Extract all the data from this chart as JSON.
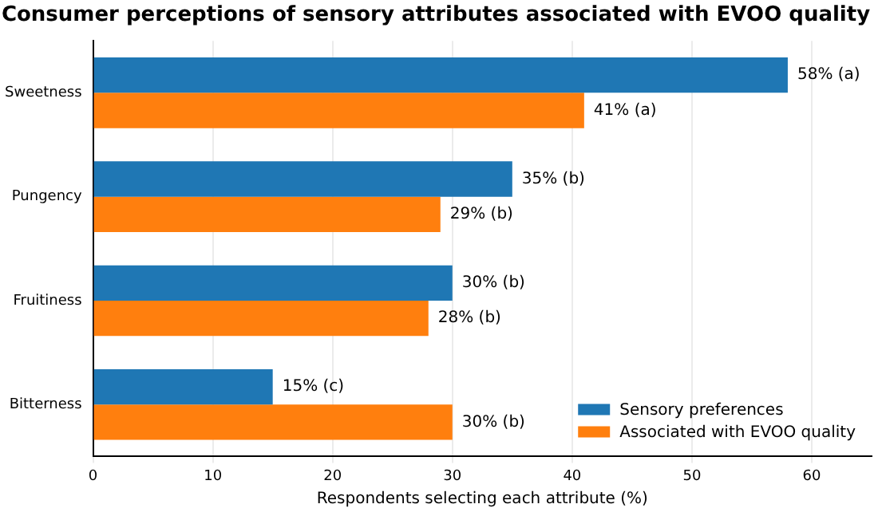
{
  "chart_data": {
    "type": "bar",
    "orientation": "horizontal",
    "title": "Consumer perceptions of sensory attributes associated with EVOO quality",
    "xlabel": "Respondents selecting each attribute (%)",
    "categories": [
      "Sweetness",
      "Pungency",
      "Fruitiness",
      "Bitterness"
    ],
    "series": [
      {
        "name": "Sensory preferences",
        "color": "#1f77b4",
        "values": [
          58,
          35,
          30,
          15
        ],
        "value_labels": [
          "58% (a)",
          "35% (b)",
          "30% (b)",
          "15% (c)"
        ]
      },
      {
        "name": "Associated with EVOO quality",
        "color": "#ff7f0e",
        "values": [
          41,
          29,
          28,
          30
        ],
        "value_labels": [
          "41% (a)",
          "29% (b)",
          "28% (b)",
          "30% (b)"
        ]
      }
    ],
    "xlim": [
      0,
      65
    ],
    "xticks": [
      0,
      10,
      20,
      30,
      40,
      50,
      60
    ],
    "grid": "x",
    "legend": "bottom right"
  }
}
